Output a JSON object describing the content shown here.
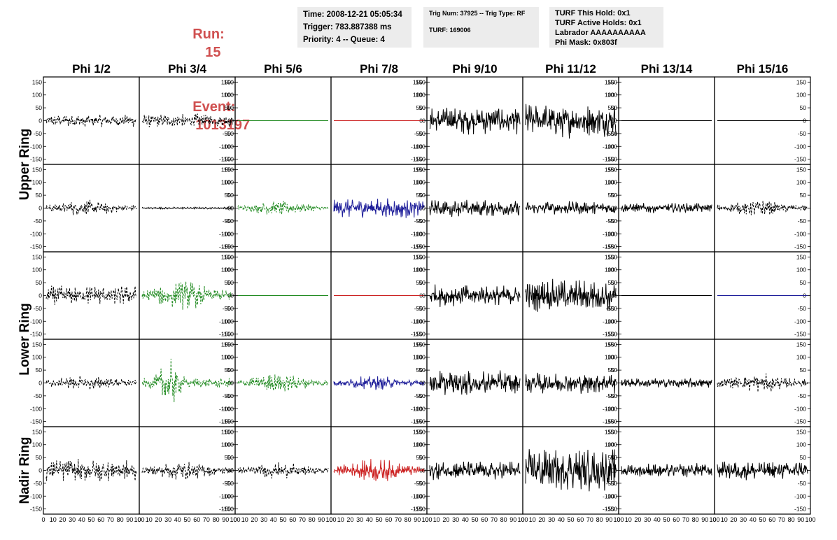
{
  "header": {
    "run_label": "Run:",
    "run_value": "15",
    "event_label": "Event:",
    "event_value": "1013197",
    "time": "Time: 2008-12-21 05:05:34",
    "trigger": "Trigger: 783.887388 ms",
    "priority": "Priority: 4 -- Queue: 4",
    "trig_num": "Trig Num: 37925 -- Trig Type: RF",
    "turf": "TURF: 169006",
    "turf_hold": "TURF This Hold: 0x1",
    "turf_active": "TURF Active Holds: 0x1",
    "labrador": "Labrador AAAAAAAAAA",
    "phi_mask": "Phi Mask: 0x803f"
  },
  "colors": {
    "header_red": "#d05050",
    "info_bg": "#ececec",
    "black": "#000000",
    "green": "#228b22",
    "blue": "#1e1e9a",
    "red": "#cc2222"
  },
  "chart_data": {
    "type": "line",
    "columns": [
      "Phi 1/2",
      "Phi 3/4",
      "Phi 5/6",
      "Phi 7/8",
      "Phi 9/10",
      "Phi 11/12",
      "Phi 13/14",
      "Phi 15/16"
    ],
    "rows": [
      "Upper Ring",
      "Upper Ring",
      "Lower Ring",
      "Lower Ring",
      "Nadir Ring"
    ],
    "row_labels": [
      "Upper Ring",
      "Lower Ring",
      "Nadir Ring"
    ],
    "ylim": [
      -170,
      170
    ],
    "y_ticks": [
      "150",
      "100",
      "50",
      "0",
      "-50",
      "-100",
      "-150"
    ],
    "xlim": [
      0,
      100
    ],
    "x_ticks": [
      "0",
      "10",
      "20",
      "30",
      "40",
      "50",
      "60",
      "70",
      "80",
      "90",
      "100"
    ],
    "panels": [
      [
        {
          "color": "black",
          "style": "dashed",
          "amp": 25,
          "shape": "flat"
        },
        {
          "color": "black",
          "style": "dashed",
          "amp": 28,
          "shape": "flat"
        },
        {
          "color": "green",
          "style": "solid",
          "amp": 0,
          "shape": "flat"
        },
        {
          "color": "red",
          "style": "solid",
          "amp": 0,
          "shape": "flat"
        },
        {
          "color": "black",
          "style": "solid",
          "amp": 55,
          "shape": "flat"
        },
        {
          "color": "black",
          "style": "solid",
          "amp": 70,
          "shape": "flat"
        },
        {
          "color": "black",
          "style": "solid",
          "amp": 0,
          "shape": "flat"
        },
        {
          "color": "black",
          "style": "solid",
          "amp": 0,
          "shape": "flat"
        }
      ],
      [
        {
          "color": "black",
          "style": "dashed",
          "amp": 35,
          "shape": "mid"
        },
        {
          "color": "black",
          "style": "solid",
          "amp": 4,
          "shape": "flat"
        },
        {
          "color": "green",
          "style": "dashed",
          "amp": 30,
          "shape": "mid"
        },
        {
          "color": "blue",
          "style": "solid",
          "amp": 40,
          "shape": "flat"
        },
        {
          "color": "black",
          "style": "solid",
          "amp": 35,
          "shape": "flat"
        },
        {
          "color": "black",
          "style": "solid",
          "amp": 28,
          "shape": "flat"
        },
        {
          "color": "black",
          "style": "solid",
          "amp": 20,
          "shape": "flat"
        },
        {
          "color": "black",
          "style": "dashed",
          "amp": 35,
          "shape": "mid"
        }
      ],
      [
        {
          "color": "black",
          "style": "dashed",
          "amp": 40,
          "shape": "flat"
        },
        {
          "color": "green",
          "style": "dashed",
          "amp": 60,
          "shape": "mid"
        },
        {
          "color": "green",
          "style": "solid",
          "amp": 0,
          "shape": "flat"
        },
        {
          "color": "red",
          "style": "solid",
          "amp": 0,
          "shape": "flat"
        },
        {
          "color": "black",
          "style": "solid",
          "amp": 45,
          "shape": "flat"
        },
        {
          "color": "black",
          "style": "solid",
          "amp": 65,
          "shape": "flat"
        },
        {
          "color": "black",
          "style": "solid",
          "amp": 0,
          "shape": "flat"
        },
        {
          "color": "blue",
          "style": "solid",
          "amp": 0,
          "shape": "flat"
        }
      ],
      [
        {
          "color": "black",
          "style": "dashed",
          "amp": 35,
          "shape": "mid"
        },
        {
          "color": "green",
          "style": "dashed",
          "amp": 100,
          "shape": "early"
        },
        {
          "color": "green",
          "style": "dashed",
          "amp": 40,
          "shape": "mid"
        },
        {
          "color": "blue",
          "style": "solid",
          "amp": 30,
          "shape": "mid"
        },
        {
          "color": "black",
          "style": "solid",
          "amp": 50,
          "shape": "flat"
        },
        {
          "color": "black",
          "style": "solid",
          "amp": 45,
          "shape": "flat"
        },
        {
          "color": "black",
          "style": "solid",
          "amp": 20,
          "shape": "flat"
        },
        {
          "color": "black",
          "style": "dashed",
          "amp": 40,
          "shape": "mid"
        }
      ],
      [
        {
          "color": "black",
          "style": "dashed",
          "amp": 45,
          "shape": "flat"
        },
        {
          "color": "black",
          "style": "dashed",
          "amp": 40,
          "shape": "mid"
        },
        {
          "color": "black",
          "style": "dashed",
          "amp": 35,
          "shape": "mid"
        },
        {
          "color": "red",
          "style": "solid",
          "amp": 50,
          "shape": "mid"
        },
        {
          "color": "black",
          "style": "solid",
          "amp": 40,
          "shape": "flat"
        },
        {
          "color": "black",
          "style": "solid",
          "amp": 90,
          "shape": "flat"
        },
        {
          "color": "black",
          "style": "solid",
          "amp": 30,
          "shape": "flat"
        },
        {
          "color": "black",
          "style": "solid",
          "amp": 40,
          "shape": "flat"
        }
      ]
    ]
  }
}
